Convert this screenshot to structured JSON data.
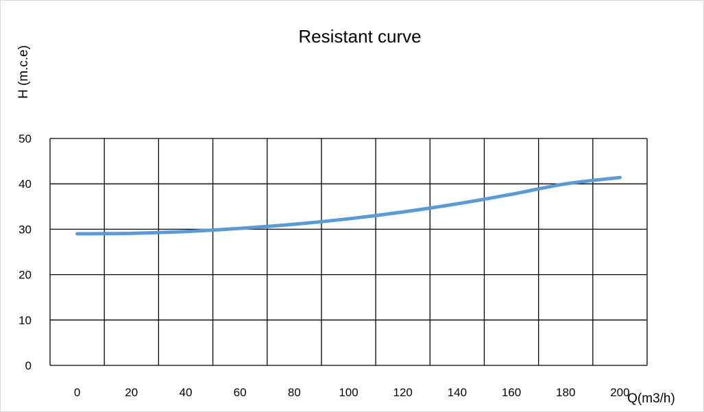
{
  "chart_data": {
    "type": "line",
    "title": "Resistant curve",
    "xlabel": "Q(m3/h)",
    "ylabel": "H (m.c.e)",
    "x": [
      0,
      20,
      40,
      60,
      80,
      100,
      120,
      140,
      160,
      180,
      200
    ],
    "x_tick_labels": [
      "0",
      "20",
      "40",
      "60",
      "80",
      "100",
      "120",
      "140",
      "160",
      "180",
      "200"
    ],
    "y_tick_labels": [
      "0",
      "10",
      "20",
      "30",
      "40",
      "50"
    ],
    "ylim": [
      0,
      50
    ],
    "y_step": 10,
    "grid": true,
    "legend": "none",
    "series": [
      {
        "values": [
          29.0,
          29.1,
          29.5,
          30.2,
          31.1,
          32.3,
          33.8,
          35.6,
          37.7,
          40.0,
          41.4
        ],
        "color": "#5b9bd5"
      }
    ],
    "colors": {
      "grid": "#000000",
      "frame_border": "#d9d9d9",
      "text": "#000000"
    }
  }
}
